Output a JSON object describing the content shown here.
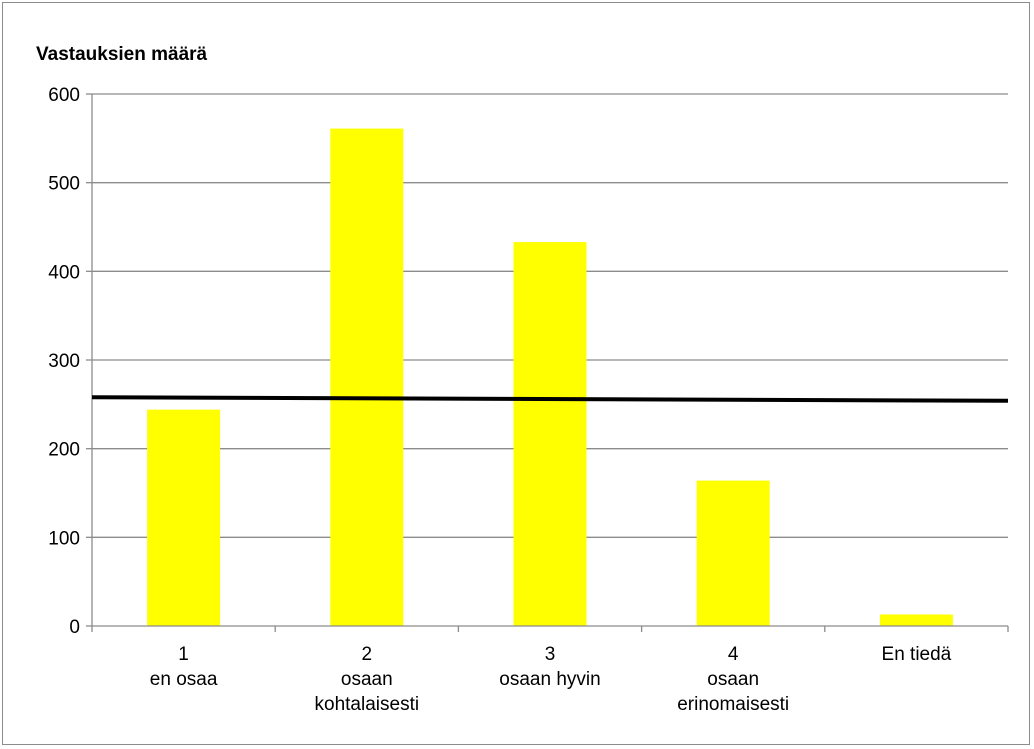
{
  "chart_data": {
    "type": "bar",
    "title": "",
    "xlabel": "",
    "ylabel": "Vastauksien määrä",
    "ylim": [
      0,
      600
    ],
    "yticks": [
      0,
      100,
      200,
      300,
      400,
      500,
      600
    ],
    "grid": true,
    "legend": "none",
    "bar_color": "#ffff00",
    "categories": [
      [
        "1",
        "en osaa"
      ],
      [
        "2",
        "osaan",
        "kohtalaisesti"
      ],
      [
        "3",
        "osaan hyvin"
      ],
      [
        "4",
        "osaan",
        "erinomaisesti"
      ],
      [
        "En tiedä"
      ]
    ],
    "values": [
      244,
      561,
      433,
      164,
      13
    ],
    "reference_line": {
      "color": "#000000",
      "y_start": 258,
      "y_end": 254
    }
  }
}
